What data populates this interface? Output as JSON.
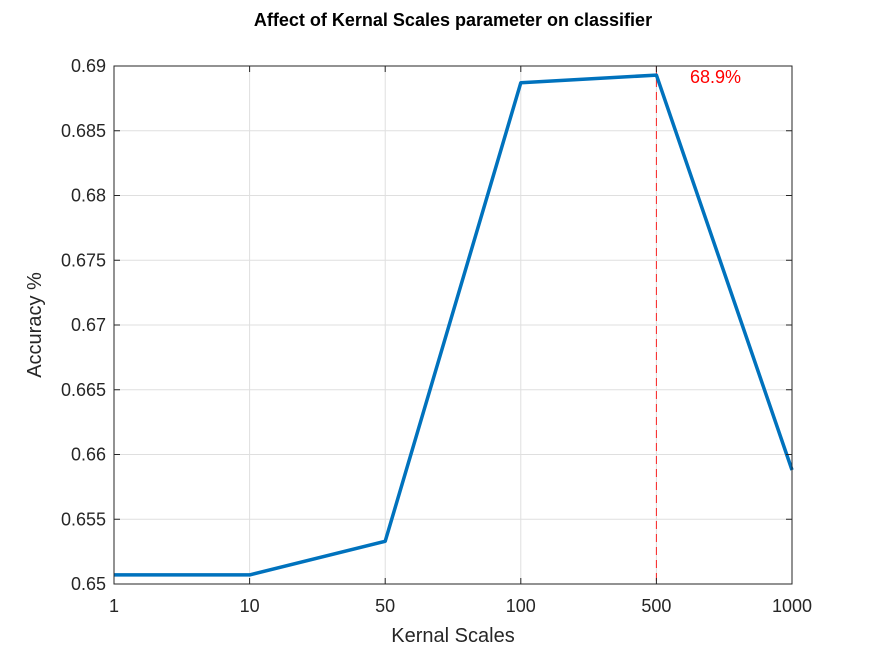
{
  "chart_data": {
    "type": "line",
    "title": "Affect of Kernal Scales parameter on classifier",
    "xlabel": "Kernal Scales",
    "ylabel": "Accuracy %",
    "categories": [
      "1",
      "10",
      "50",
      "100",
      "500",
      "1000"
    ],
    "series": [
      {
        "values": [
          0.6507,
          0.6507,
          0.6533,
          0.6887,
          0.6893,
          0.6588
        ],
        "color": "#0072BD"
      }
    ],
    "ylim": [
      0.65,
      0.69
    ],
    "yticks": [
      "0.65",
      "0.655",
      "0.66",
      "0.665",
      "0.67",
      "0.675",
      "0.68",
      "0.685",
      "0.69"
    ],
    "grid": true,
    "annotation": {
      "text": "68.9%",
      "category": "500",
      "color": "#FF0000",
      "line": "dashed"
    }
  }
}
